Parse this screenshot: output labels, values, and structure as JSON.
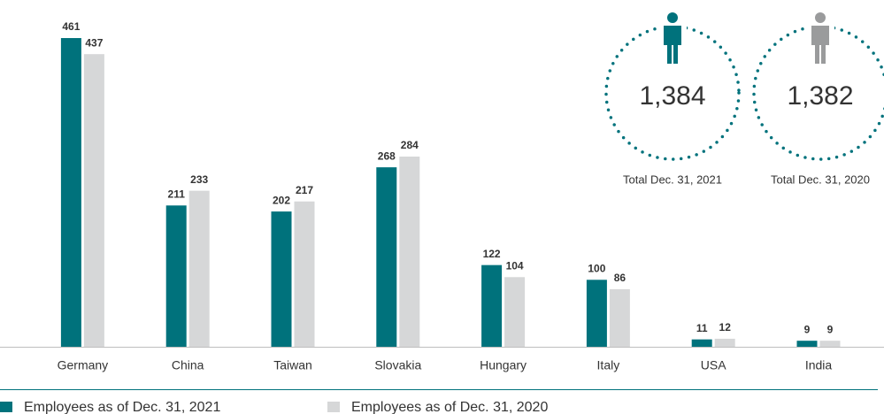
{
  "chart_data": {
    "type": "bar",
    "categories": [
      "Germany",
      "China",
      "Taiwan",
      "Slovakia",
      "Hungary",
      "Italy",
      "USA",
      "India"
    ],
    "series": [
      {
        "name": "Employees as of Dec. 31, 2021",
        "color": "#00727c",
        "values": [
          461,
          211,
          202,
          268,
          122,
          100,
          11,
          9
        ]
      },
      {
        "name": "Employees as of Dec. 31, 2020",
        "color": "#d6d7d8",
        "values": [
          437,
          233,
          217,
          284,
          104,
          86,
          12,
          9
        ]
      }
    ],
    "ylim": [
      0,
      500
    ],
    "totals": {
      "values": [
        1384,
        1382
      ],
      "value_labels": [
        "1,384",
        "1,382"
      ],
      "labels": [
        "Total Dec. 31, 2021",
        "Total Dec. 31, 2020"
      ],
      "colors": [
        "#00727c",
        "#9a9b9c"
      ]
    }
  }
}
